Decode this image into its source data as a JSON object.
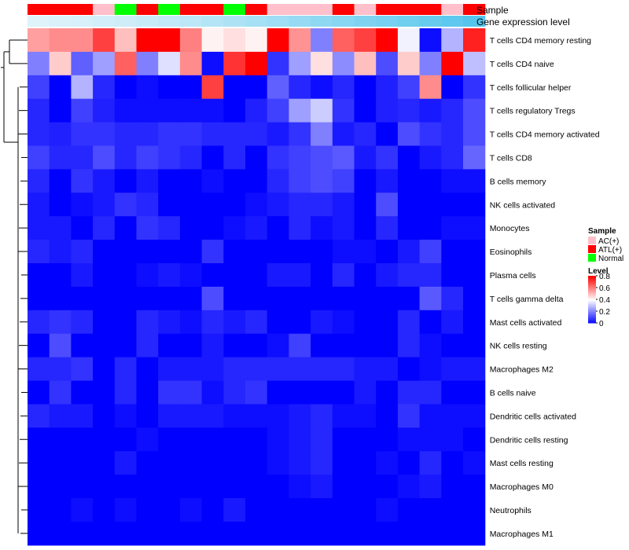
{
  "chart_data": {
    "type": "heatmap",
    "annotation_titles": {
      "sample": "Sample",
      "expression": "Gene expression level"
    },
    "sample_groups": [
      "ATL(+)",
      "ATL(+)",
      "ATL(+)",
      "AC(+)",
      "Normal",
      "ATL(+)",
      "Normal",
      "ATL(+)",
      "ATL(+)",
      "Normal",
      "ATL(+)",
      "AC(+)",
      "AC(+)",
      "AC(+)",
      "ATL(+)",
      "AC(+)",
      "ATL(+)",
      "ATL(+)",
      "ATL(+)",
      "AC(+)",
      "ATL(+)"
    ],
    "expression_levels": [
      0.05,
      0.08,
      0.1,
      0.13,
      0.16,
      0.2,
      0.24,
      0.28,
      0.33,
      0.38,
      0.43,
      0.48,
      0.53,
      0.58,
      0.63,
      0.68,
      0.73,
      0.78,
      0.84,
      0.9,
      0.96
    ],
    "rows": [
      "T cells CD4 memory resting",
      "T cells CD4 naive",
      "T cells follicular helper",
      "T cells regulatory  Tregs",
      "T cells CD4 memory activated",
      "T cells CD8",
      "B cells memory",
      "NK cells activated",
      "Monocytes",
      "Eosinophils",
      "Plasma cells",
      "T cells gamma delta",
      "Mast cells activated",
      "NK cells resting",
      "Macrophages M2",
      "B cells naive",
      "Dendritic cells activated",
      "Dendritic cells resting",
      "Mast cells resting",
      "Macrophages M0",
      "Neutrophils",
      "Macrophages M1"
    ],
    "values": [
      [
        0.55,
        0.58,
        0.58,
        0.7,
        0.5,
        0.8,
        0.8,
        0.6,
        0.42,
        0.45,
        0.42,
        0.8,
        0.57,
        0.2,
        0.65,
        0.7,
        0.8,
        0.38,
        0.02,
        0.28,
        0.75
      ],
      [
        0.2,
        0.48,
        0.15,
        0.25,
        0.65,
        0.2,
        0.35,
        0.58,
        0.02,
        0.72,
        0.8,
        0.08,
        0.25,
        0.45,
        0.22,
        0.5,
        0.12,
        0.48,
        0.2,
        0.8,
        0.3
      ],
      [
        0.1,
        0.0,
        0.28,
        0.06,
        0.0,
        0.02,
        0.0,
        0.0,
        0.7,
        0.0,
        0.0,
        0.15,
        0.06,
        0.02,
        0.06,
        0.0,
        0.05,
        0.1,
        0.58,
        0.0,
        0.08
      ],
      [
        0.06,
        0.0,
        0.1,
        0.05,
        0.02,
        0.02,
        0.02,
        0.02,
        0.02,
        0.0,
        0.05,
        0.1,
        0.25,
        0.32,
        0.08,
        0.0,
        0.05,
        0.06,
        0.04,
        0.06,
        0.12
      ],
      [
        0.06,
        0.05,
        0.08,
        0.08,
        0.06,
        0.06,
        0.08,
        0.08,
        0.06,
        0.06,
        0.06,
        0.04,
        0.08,
        0.2,
        0.04,
        0.06,
        0.0,
        0.12,
        0.08,
        0.06,
        0.12
      ],
      [
        0.1,
        0.06,
        0.06,
        0.12,
        0.06,
        0.1,
        0.08,
        0.06,
        0.0,
        0.06,
        0.0,
        0.08,
        0.1,
        0.12,
        0.14,
        0.04,
        0.08,
        0.0,
        0.04,
        0.06,
        0.16
      ],
      [
        0.06,
        0.0,
        0.08,
        0.04,
        0.0,
        0.04,
        0.0,
        0.0,
        0.02,
        0.0,
        0.0,
        0.06,
        0.1,
        0.12,
        0.1,
        0.0,
        0.04,
        0.0,
        0.0,
        0.02,
        0.02
      ],
      [
        0.04,
        0.0,
        0.02,
        0.04,
        0.08,
        0.06,
        0.0,
        0.0,
        0.0,
        0.0,
        0.02,
        0.04,
        0.06,
        0.06,
        0.04,
        0.0,
        0.12,
        0.0,
        0.0,
        0.0,
        0.0
      ],
      [
        0.04,
        0.04,
        0.0,
        0.06,
        0.0,
        0.08,
        0.06,
        0.0,
        0.0,
        0.02,
        0.04,
        0.0,
        0.06,
        0.02,
        0.04,
        0.0,
        0.06,
        0.0,
        0.0,
        0.02,
        0.02
      ],
      [
        0.06,
        0.04,
        0.06,
        0.0,
        0.0,
        0.0,
        0.0,
        0.0,
        0.08,
        0.0,
        0.0,
        0.0,
        0.0,
        0.0,
        0.02,
        0.02,
        0.0,
        0.04,
        0.1,
        0.0,
        0.0
      ],
      [
        0.0,
        0.0,
        0.04,
        0.0,
        0.0,
        0.02,
        0.04,
        0.02,
        0.0,
        0.0,
        0.0,
        0.04,
        0.04,
        0.0,
        0.06,
        0.0,
        0.04,
        0.06,
        0.06,
        0.0,
        0.0
      ],
      [
        0.0,
        0.0,
        0.0,
        0.0,
        0.0,
        0.0,
        0.0,
        0.0,
        0.12,
        0.0,
        0.0,
        0.0,
        0.0,
        0.0,
        0.0,
        0.0,
        0.0,
        0.0,
        0.14,
        0.06,
        0.0
      ],
      [
        0.06,
        0.08,
        0.06,
        0.0,
        0.0,
        0.06,
        0.04,
        0.02,
        0.06,
        0.04,
        0.06,
        0.0,
        0.0,
        0.04,
        0.02,
        0.0,
        0.0,
        0.06,
        0.0,
        0.04,
        0.0
      ],
      [
        0.0,
        0.12,
        0.0,
        0.0,
        0.0,
        0.06,
        0.0,
        0.0,
        0.04,
        0.0,
        0.0,
        0.02,
        0.1,
        0.0,
        0.0,
        0.0,
        0.0,
        0.06,
        0.02,
        0.0,
        0.0
      ],
      [
        0.06,
        0.06,
        0.08,
        0.0,
        0.06,
        0.0,
        0.04,
        0.04,
        0.04,
        0.06,
        0.06,
        0.06,
        0.06,
        0.06,
        0.06,
        0.04,
        0.04,
        0.0,
        0.02,
        0.04,
        0.04
      ],
      [
        0.0,
        0.08,
        0.0,
        0.0,
        0.06,
        0.0,
        0.08,
        0.08,
        0.02,
        0.06,
        0.08,
        0.0,
        0.0,
        0.0,
        0.0,
        0.04,
        0.0,
        0.06,
        0.06,
        0.0,
        0.0
      ],
      [
        0.06,
        0.04,
        0.04,
        0.0,
        0.02,
        0.0,
        0.04,
        0.04,
        0.04,
        0.02,
        0.02,
        0.02,
        0.04,
        0.06,
        0.02,
        0.02,
        0.0,
        0.08,
        0.02,
        0.02,
        0.02
      ],
      [
        0.0,
        0.0,
        0.0,
        0.0,
        0.0,
        0.02,
        0.0,
        0.0,
        0.0,
        0.0,
        0.0,
        0.02,
        0.04,
        0.06,
        0.0,
        0.0,
        0.0,
        0.02,
        0.02,
        0.02,
        0.0
      ],
      [
        0.0,
        0.0,
        0.0,
        0.0,
        0.04,
        0.0,
        0.0,
        0.0,
        0.0,
        0.0,
        0.0,
        0.02,
        0.04,
        0.06,
        0.0,
        0.0,
        0.02,
        0.0,
        0.06,
        0.0,
        0.02
      ],
      [
        0.0,
        0.0,
        0.0,
        0.0,
        0.0,
        0.0,
        0.0,
        0.0,
        0.0,
        0.0,
        0.0,
        0.0,
        0.02,
        0.04,
        0.0,
        0.0,
        0.0,
        0.02,
        0.04,
        0.0,
        0.0
      ],
      [
        0.0,
        0.0,
        0.02,
        0.0,
        0.02,
        0.0,
        0.0,
        0.02,
        0.0,
        0.04,
        0.0,
        0.0,
        0.0,
        0.0,
        0.0,
        0.0,
        0.02,
        0.0,
        0.0,
        0.0,
        0.0
      ],
      [
        0.0,
        0.0,
        0.0,
        0.0,
        0.0,
        0.0,
        0.0,
        0.0,
        0.0,
        0.0,
        0.0,
        0.0,
        0.0,
        0.0,
        0.0,
        0.0,
        0.0,
        0.0,
        0.0,
        0.0,
        0.0
      ]
    ],
    "row_order_dendrogram": true,
    "legend_sample": {
      "title": "Sample",
      "entries": [
        {
          "label": "AC(+)",
          "color": "#FFC0CB"
        },
        {
          "label": "ATL(+)",
          "color": "#FF0000"
        },
        {
          "label": "Normal",
          "color": "#00FF00"
        }
      ]
    },
    "legend_level": {
      "title": "Level",
      "ticks": [
        "0.8",
        "0.6",
        "0.4",
        "0.2",
        "0"
      ],
      "tick_values": [
        0.8,
        0.6,
        0.4,
        0.2,
        0.0
      ],
      "range": [
        0,
        0.8
      ]
    },
    "colors": {
      "low": "#0000FF",
      "mid": "#FFFFFF",
      "high": "#FF0000",
      "expr_low": "#E6F5FB",
      "expr_high": "#4FC3EC"
    },
    "legend_placement": "right"
  }
}
